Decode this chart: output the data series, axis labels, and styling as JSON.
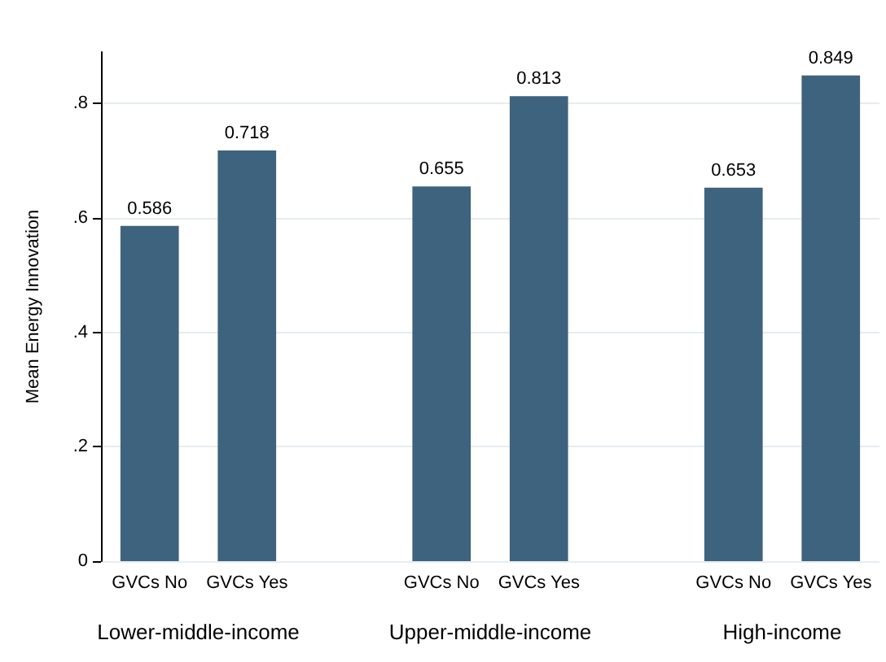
{
  "chart_data": {
    "type": "bar",
    "ylabel": "Mean Energy Innovation",
    "categories": [
      "GVCs No",
      "GVCs Yes",
      null,
      "GVCs No",
      "GVCs Yes",
      null,
      "GVCs No",
      "GVCs Yes"
    ],
    "values": [
      0.586,
      0.718,
      null,
      0.655,
      0.813,
      null,
      0.653,
      0.849
    ],
    "color": "#3e637e",
    "ylim": [
      0,
      0.89
    ],
    "yticks": [
      0,
      {
        "value": 0.2,
        "label": ".2"
      },
      {
        "value": 0.4,
        "label": ".4"
      },
      {
        "value": 0.6,
        "label": ".6"
      },
      {
        "value": 0.8,
        "label": ".8"
      }
    ],
    "grid": "y",
    "data_labels": true,
    "annotations": [
      "Lower-middle-income",
      "Upper-middle-income",
      "High-income"
    ]
  }
}
